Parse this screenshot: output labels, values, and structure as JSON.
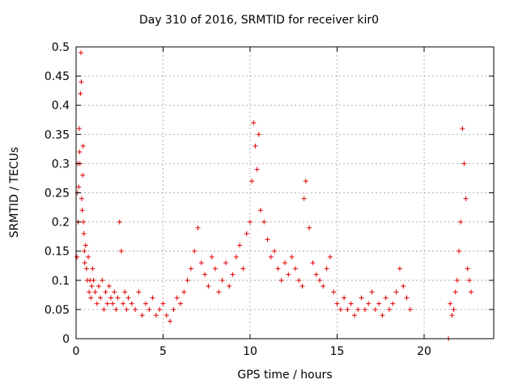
{
  "chart_data": {
    "type": "scatter",
    "title": "Day 310 of 2016, SRMTID for receiver kir0",
    "xlabel": "GPS time / hours",
    "ylabel": "SRMTID / TECUs",
    "xlim": [
      0,
      24
    ],
    "ylim": [
      0,
      0.5
    ],
    "x_ticks": [
      0,
      5,
      10,
      15,
      20
    ],
    "x_tick_labels": [
      "0",
      "5",
      "10",
      "15",
      "20"
    ],
    "y_ticks": [
      0,
      0.05,
      0.1,
      0.15,
      0.2,
      0.25,
      0.3,
      0.35,
      0.4,
      0.45,
      0.5
    ],
    "y_tick_labels": [
      "0",
      "0.05",
      "0.1",
      "0.15",
      "0.2",
      "0.25",
      "0.3",
      "0.35",
      "0.4",
      "0.45",
      "0.5"
    ],
    "grid": true,
    "marker": "+",
    "color": "#e00000",
    "series": [
      {
        "name": "SRMTID",
        "x": [
          0.05,
          0.08,
          0.1,
          0.12,
          0.15,
          0.18,
          0.2,
          0.22,
          0.25,
          0.28,
          0.3,
          0.32,
          0.35,
          0.38,
          0.4,
          0.42,
          0.45,
          0.48,
          0.5,
          0.55,
          0.6,
          0.65,
          0.7,
          0.75,
          0.8,
          0.85,
          0.9,
          0.95,
          1.0,
          1.1,
          1.2,
          1.3,
          1.4,
          1.5,
          1.6,
          1.7,
          1.8,
          1.9,
          2.0,
          2.1,
          2.2,
          2.3,
          2.4,
          2.5,
          2.6,
          2.7,
          2.8,
          2.9,
          3.0,
          3.2,
          3.4,
          3.6,
          3.8,
          4.0,
          4.2,
          4.4,
          4.6,
          4.8,
          5.0,
          5.2,
          5.4,
          5.6,
          5.8,
          6.0,
          6.2,
          6.4,
          6.6,
          6.8,
          7.0,
          7.2,
          7.4,
          7.6,
          7.8,
          8.0,
          8.2,
          8.4,
          8.6,
          8.8,
          9.0,
          9.2,
          9.4,
          9.6,
          9.8,
          10.0,
          10.1,
          10.2,
          10.3,
          10.4,
          10.5,
          10.6,
          10.8,
          11.0,
          11.2,
          11.4,
          11.6,
          11.8,
          12.0,
          12.2,
          12.4,
          12.6,
          12.8,
          13.0,
          13.1,
          13.2,
          13.4,
          13.6,
          13.8,
          14.0,
          14.2,
          14.4,
          14.6,
          14.8,
          15.0,
          15.2,
          15.4,
          15.6,
          15.8,
          16.0,
          16.2,
          16.4,
          16.6,
          16.8,
          17.0,
          17.2,
          17.4,
          17.6,
          17.8,
          18.0,
          18.2,
          18.4,
          18.6,
          18.8,
          19.0,
          19.2,
          21.4,
          21.5,
          21.6,
          21.7,
          21.8,
          21.9,
          22.0,
          22.1,
          22.2,
          22.3,
          22.4,
          22.5,
          22.6,
          22.7
        ],
        "values": [
          0.14,
          0.25,
          0.3,
          0.2,
          0.26,
          0.36,
          0.32,
          0.3,
          0.42,
          0.49,
          0.44,
          0.24,
          0.22,
          0.28,
          0.33,
          0.2,
          0.18,
          0.15,
          0.13,
          0.16,
          0.12,
          0.1,
          0.14,
          0.08,
          0.1,
          0.07,
          0.09,
          0.12,
          0.1,
          0.08,
          0.06,
          0.09,
          0.07,
          0.1,
          0.05,
          0.08,
          0.06,
          0.09,
          0.07,
          0.06,
          0.08,
          0.05,
          0.07,
          0.2,
          0.15,
          0.06,
          0.08,
          0.05,
          0.07,
          0.06,
          0.05,
          0.08,
          0.04,
          0.06,
          0.05,
          0.07,
          0.04,
          0.05,
          0.06,
          0.04,
          0.03,
          0.05,
          0.07,
          0.06,
          0.08,
          0.1,
          0.12,
          0.15,
          0.19,
          0.13,
          0.11,
          0.09,
          0.14,
          0.12,
          0.08,
          0.1,
          0.13,
          0.09,
          0.11,
          0.14,
          0.16,
          0.12,
          0.18,
          0.2,
          0.27,
          0.37,
          0.33,
          0.29,
          0.35,
          0.22,
          0.2,
          0.17,
          0.14,
          0.15,
          0.12,
          0.1,
          0.13,
          0.11,
          0.14,
          0.12,
          0.1,
          0.09,
          0.24,
          0.27,
          0.19,
          0.13,
          0.11,
          0.1,
          0.09,
          0.12,
          0.14,
          0.08,
          0.06,
          0.05,
          0.07,
          0.05,
          0.06,
          0.04,
          0.05,
          0.07,
          0.05,
          0.06,
          0.08,
          0.05,
          0.06,
          0.04,
          0.07,
          0.05,
          0.06,
          0.08,
          0.12,
          0.09,
          0.07,
          0.05,
          0.0,
          0.06,
          0.04,
          0.05,
          0.08,
          0.1,
          0.15,
          0.2,
          0.36,
          0.3,
          0.24,
          0.12,
          0.1,
          0.08
        ]
      }
    ]
  }
}
